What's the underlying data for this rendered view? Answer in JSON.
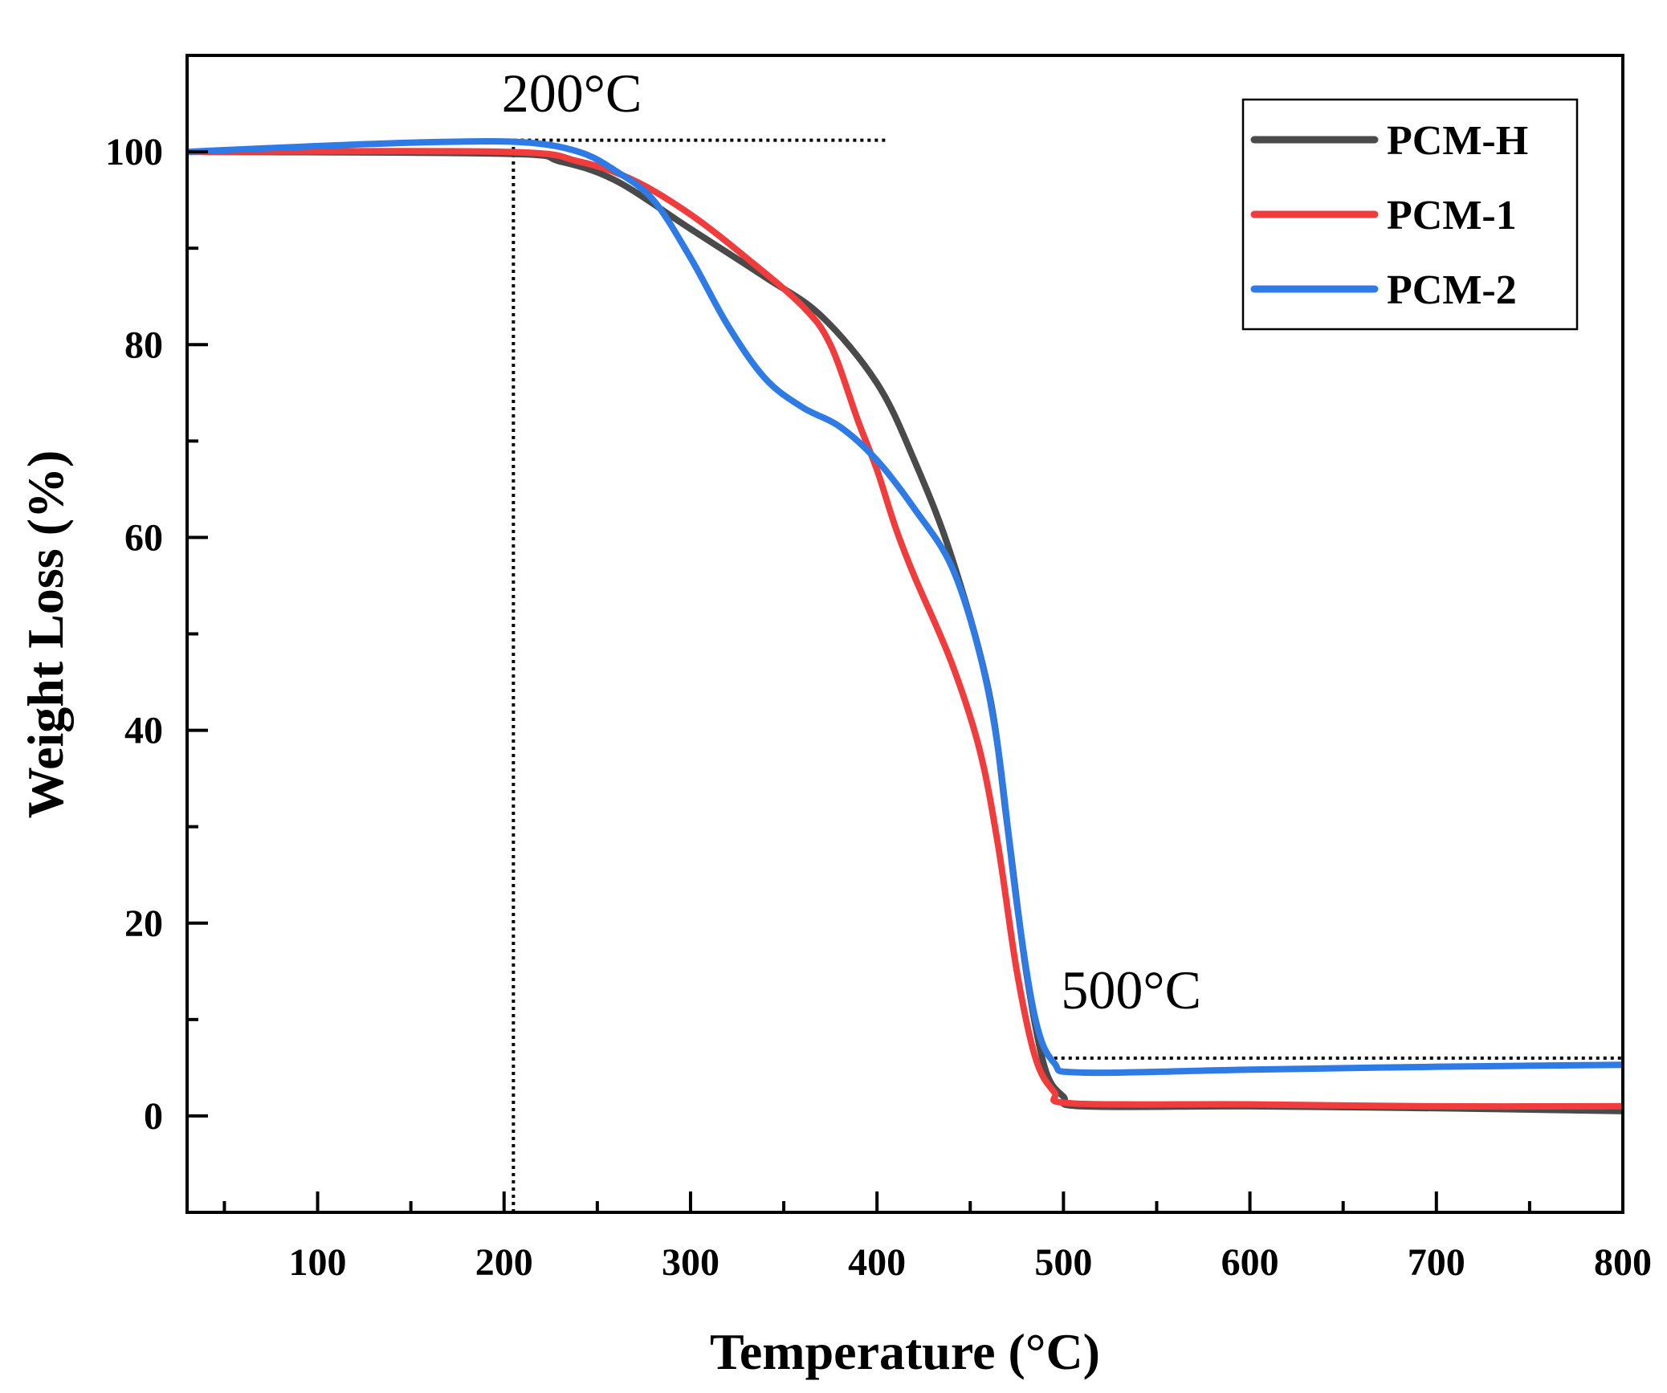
{
  "chart_data": {
    "type": "line",
    "xlabel": "Temperature (°C)",
    "ylabel": "Weight Loss (%)",
    "xlim": [
      30,
      800
    ],
    "ylim": [
      -10,
      110
    ],
    "xticks": [
      100,
      200,
      300,
      400,
      500,
      600,
      700,
      800
    ],
    "yticks": [
      0,
      20,
      40,
      60,
      80,
      100
    ],
    "grid": false,
    "legend_position": "top-right",
    "series": [
      {
        "name": "PCM-H",
        "color": "#4a4a4a",
        "x": [
          30,
          200,
          230,
          260,
          300,
          340,
          370,
          400,
          420,
          440,
          460,
          470,
          480,
          490,
          500,
          510,
          600,
          700,
          800
        ],
        "y": [
          100,
          99.8,
          99,
          97,
          92,
          87,
          83,
          76,
          68,
          58,
          44,
          30,
          15,
          5,
          2,
          1,
          1,
          0.8,
          0.5
        ]
      },
      {
        "name": "PCM-1",
        "color": "#f03c3c",
        "x": [
          30,
          200,
          240,
          270,
          300,
          330,
          360,
          375,
          390,
          400,
          410,
          420,
          440,
          455,
          465,
          475,
          485,
          495,
          505,
          600,
          700,
          800
        ],
        "y": [
          100,
          100,
          99,
          97,
          93.5,
          89,
          84,
          80,
          72,
          67,
          61,
          56,
          47,
          38,
          28,
          15,
          6,
          2.5,
          1.3,
          1.2,
          1,
          1
        ]
      },
      {
        "name": "PCM-2",
        "color": "#2f7be6",
        "x": [
          30,
          100,
          160,
          210,
          240,
          260,
          280,
          300,
          320,
          340,
          360,
          380,
          400,
          420,
          440,
          455,
          465,
          475,
          485,
          495,
          510,
          600,
          700,
          800
        ],
        "y": [
          100,
          100.6,
          101,
          101,
          100,
          98,
          95,
          89,
          82,
          76.5,
          73.5,
          71.5,
          68,
          63,
          57,
          48,
          38,
          22,
          10,
          5.5,
          4.5,
          4.8,
          5.1,
          5.3
        ]
      }
    ],
    "reference_lines": [
      {
        "type": "horizontal",
        "y": 101.2,
        "x": [
          205,
          405
        ]
      },
      {
        "type": "vertical",
        "x": 205,
        "y": [
          -10,
          101.2
        ]
      },
      {
        "type": "horizontal",
        "y": 6,
        "x": [
          495,
          800
        ]
      }
    ],
    "annotations": [
      {
        "text": "200°C",
        "x": 200,
        "y": 106
      },
      {
        "text": "500°C",
        "x": 500,
        "y": 13
      }
    ]
  }
}
